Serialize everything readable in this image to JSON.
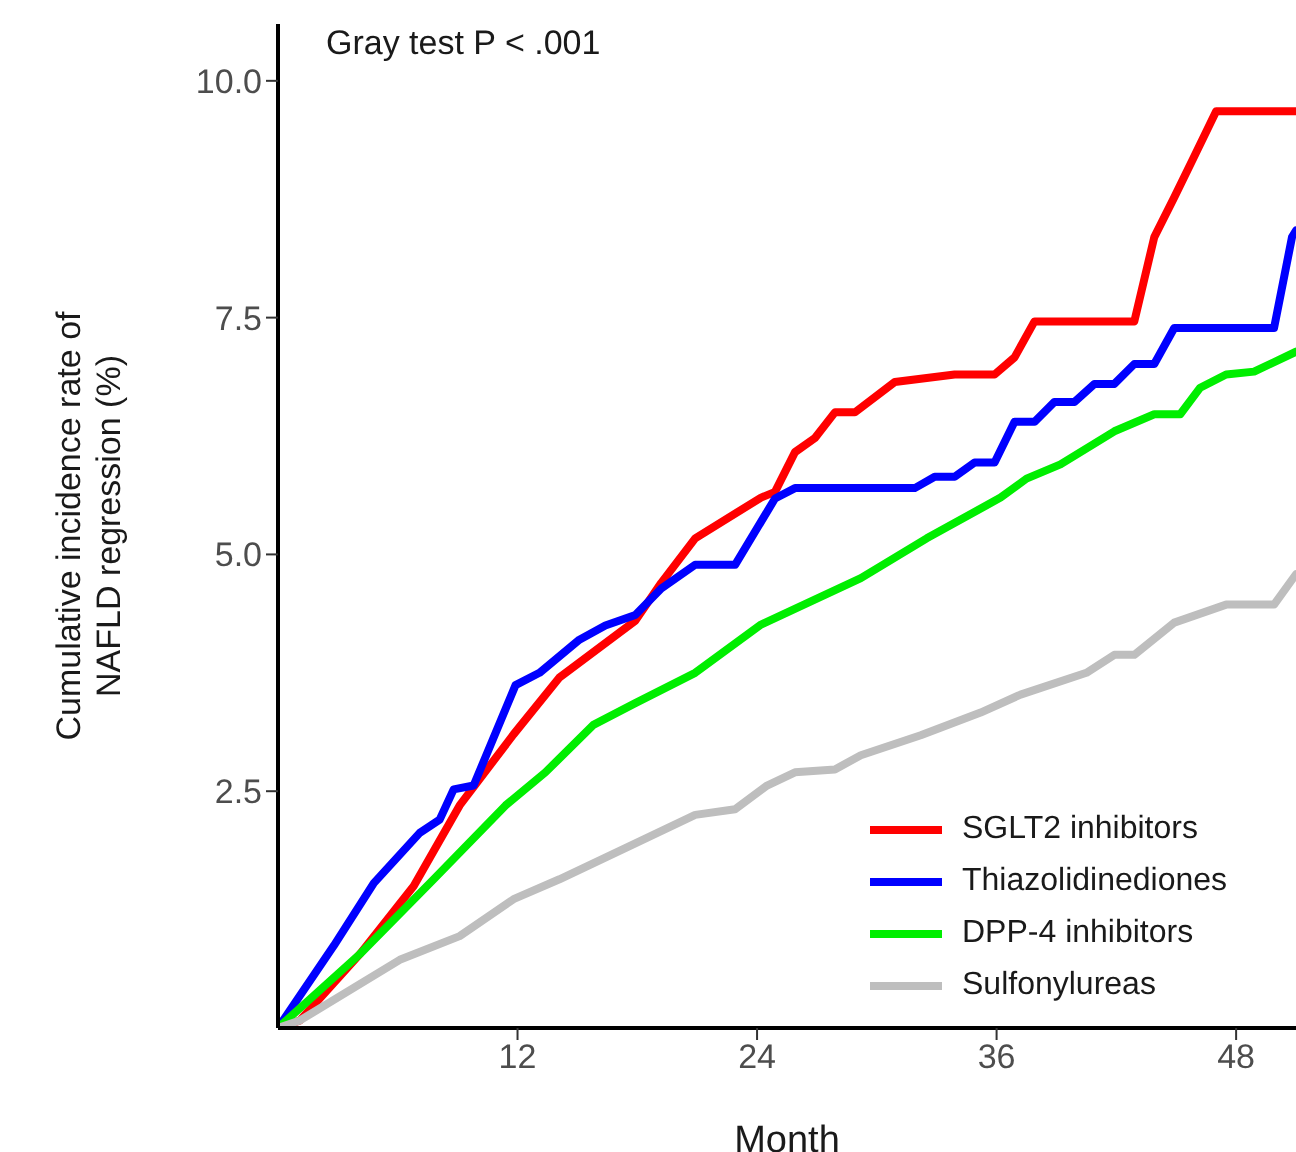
{
  "chart_data": {
    "type": "line",
    "xlabel": "Month",
    "ylabel": "Cumulative incidence rate of NAFLD regression  (%)",
    "annotations": [
      "Gray test P < .001"
    ],
    "xlim": [
      0,
      51
    ],
    "ylim": [
      0,
      10.6
    ],
    "xticks": [
      12,
      24,
      36,
      48
    ],
    "yticks": [
      2.5,
      {
        "value": 5,
        "label": "5.0"
      },
      7.5,
      {
        "value": 10,
        "label": "10.0"
      }
    ],
    "grid": false,
    "legend": "bottom right",
    "marker": "none",
    "line_style": "solid",
    "series": [
      {
        "name": "SGLT2  inhibitors",
        "color": "#ff0000",
        "x": [
          0,
          1.1,
          4.1,
          6.8,
          9.1,
          11.8,
          14.1,
          17.9,
          19.2,
          20.9,
          24.2,
          24.9,
          25.9,
          26.9,
          27.9,
          28.9,
          30.9,
          33.9,
          35.9,
          36.9,
          37.9,
          42.9,
          43.9,
          44.9,
          45.9,
          47.0,
          51
        ],
        "values": [
          0,
          0.08,
          0.78,
          1.5,
          2.35,
          3.1,
          3.7,
          4.3,
          4.7,
          5.17,
          5.6,
          5.66,
          6.08,
          6.23,
          6.5,
          6.5,
          6.82,
          6.9,
          6.9,
          7.08,
          7.46,
          7.46,
          8.35,
          8.77,
          9.2,
          9.68,
          9.68
        ]
      },
      {
        "name": "Thiazolidinediones",
        "color": "#0000ff",
        "x": [
          0,
          2.8,
          4.8,
          7.1,
          8.1,
          8.8,
          9.8,
          11.9,
          13.1,
          15.1,
          16.4,
          17.9,
          19.2,
          20.9,
          22.9,
          24.9,
          25.9,
          31.9,
          32.9,
          33.9,
          34.9,
          35.9,
          36.9,
          37.9,
          38.9,
          39.9,
          40.9,
          41.9,
          42.9,
          43.9,
          44.9,
          49.9,
          50.8,
          51
        ],
        "values": [
          0,
          0.87,
          1.53,
          2.06,
          2.2,
          2.52,
          2.56,
          3.62,
          3.75,
          4.1,
          4.25,
          4.36,
          4.64,
          4.89,
          4.89,
          5.59,
          5.7,
          5.7,
          5.82,
          5.82,
          5.97,
          5.97,
          6.4,
          6.4,
          6.61,
          6.61,
          6.8,
          6.8,
          7.01,
          7.01,
          7.39,
          7.39,
          8.35,
          8.42
        ]
      },
      {
        "name": "DPP-4 inhibitors",
        "color": "#00ee00",
        "x": [
          0,
          4.1,
          7.8,
          11.4,
          13.4,
          15.8,
          17.9,
          20.9,
          24.2,
          29.2,
          32.5,
          36.2,
          37.5,
          39.2,
          41.9,
          43.9,
          45.2,
          46.2,
          47.5,
          48.9,
          51
        ],
        "values": [
          0,
          0.78,
          1.57,
          2.35,
          2.7,
          3.2,
          3.43,
          3.75,
          4.26,
          4.75,
          5.17,
          5.6,
          5.8,
          5.95,
          6.3,
          6.48,
          6.48,
          6.76,
          6.9,
          6.93,
          7.14
        ]
      },
      {
        "name": "Sulfonylureas",
        "color": "#bebebe",
        "x": [
          0,
          1.1,
          6.1,
          9.1,
          11.8,
          14.1,
          17.9,
          20.9,
          22.9,
          24.5,
          25.9,
          27.9,
          29.2,
          32.2,
          35.2,
          37.2,
          40.5,
          41.9,
          42.9,
          44.9,
          47.5,
          49.9,
          51
        ],
        "values": [
          0,
          0.08,
          0.72,
          0.97,
          1.36,
          1.57,
          1.95,
          2.25,
          2.31,
          2.56,
          2.7,
          2.73,
          2.88,
          3.09,
          3.33,
          3.52,
          3.75,
          3.94,
          3.94,
          4.28,
          4.47,
          4.47,
          4.79
        ]
      }
    ]
  }
}
